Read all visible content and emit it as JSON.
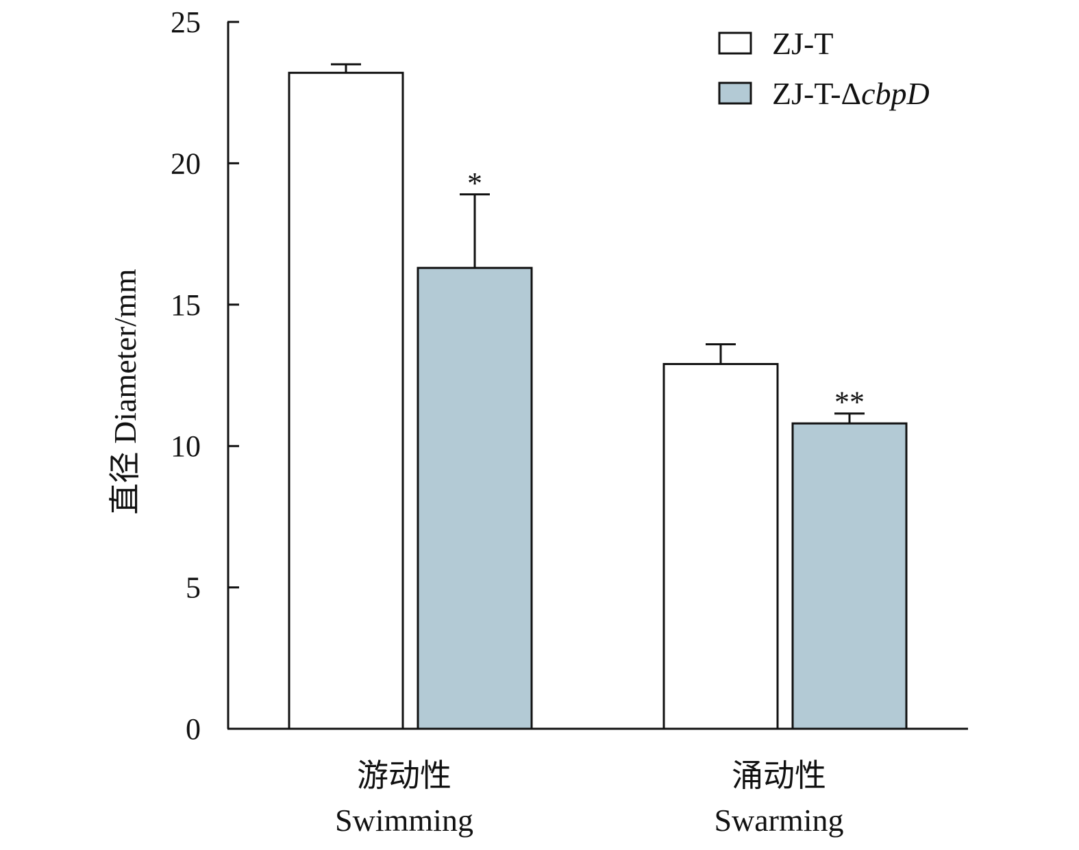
{
  "chart_data": {
    "type": "bar",
    "ylabel": "直径 Diameter/mm",
    "ylim": [
      0,
      25
    ],
    "yticks": [
      0,
      5,
      10,
      15,
      20,
      25
    ],
    "grid": false,
    "legend_position": "top-right",
    "categories": [
      {
        "zh": "游动性",
        "en": "Swimming"
      },
      {
        "zh": "涌动性",
        "en": "Swarming"
      }
    ],
    "series": [
      {
        "name": "ZJ-T",
        "name_parts": [
          {
            "text": "ZJ-T",
            "italic": false
          }
        ],
        "color": "#ffffff",
        "values": [
          23.2,
          12.9
        ],
        "errors": [
          0.3,
          0.7
        ],
        "significance": [
          "",
          ""
        ]
      },
      {
        "name": "ZJ-T-ΔcbpD",
        "name_parts": [
          {
            "text": "ZJ-T-Δ",
            "italic": false
          },
          {
            "text": "cbpD",
            "italic": true
          }
        ],
        "color": "#b3cad5",
        "values": [
          16.3,
          10.8
        ],
        "errors": [
          2.6,
          0.35
        ],
        "significance": [
          "*",
          "**"
        ]
      }
    ]
  }
}
